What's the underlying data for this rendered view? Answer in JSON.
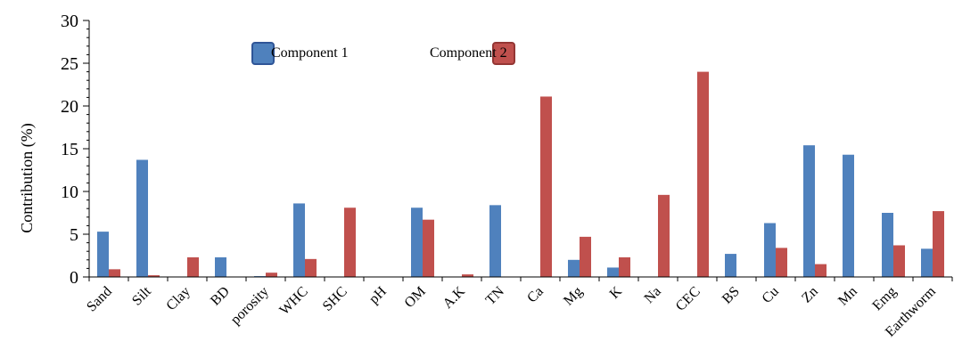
{
  "chart_data": {
    "type": "bar",
    "title": "",
    "xlabel": "",
    "ylabel": "Contribution (%)",
    "ylim": [
      0,
      30
    ],
    "yticks": [
      0,
      5,
      10,
      15,
      20,
      25,
      30
    ],
    "grid": false,
    "legend_position": "top-center",
    "categories": [
      "Sand",
      "Silt",
      "Clay",
      "BD",
      "porosity",
      "WHC",
      "SHC",
      "pH",
      "OM",
      "A.K",
      "TN",
      "Ca",
      "Mg",
      "K",
      "Na",
      "CEC",
      "BS",
      "Cu",
      "Zn",
      "Mn",
      "Emg",
      "Earthworm"
    ],
    "series": [
      {
        "name": "Component 1",
        "color": "#4f81bd",
        "values": [
          5.3,
          13.7,
          0,
          2.3,
          0.1,
          8.6,
          0,
          0,
          8.1,
          0,
          8.4,
          0,
          2.0,
          1.1,
          0,
          0,
          2.7,
          6.3,
          15.4,
          14.3,
          7.5,
          3.3
        ]
      },
      {
        "name": "Component 2",
        "color": "#c0504d",
        "values": [
          0.9,
          0.2,
          2.3,
          0,
          0.5,
          2.1,
          8.1,
          0,
          6.7,
          0.3,
          0,
          21.1,
          4.7,
          2.3,
          9.6,
          24.0,
          0,
          3.4,
          1.5,
          0,
          3.7,
          7.7
        ]
      }
    ]
  }
}
